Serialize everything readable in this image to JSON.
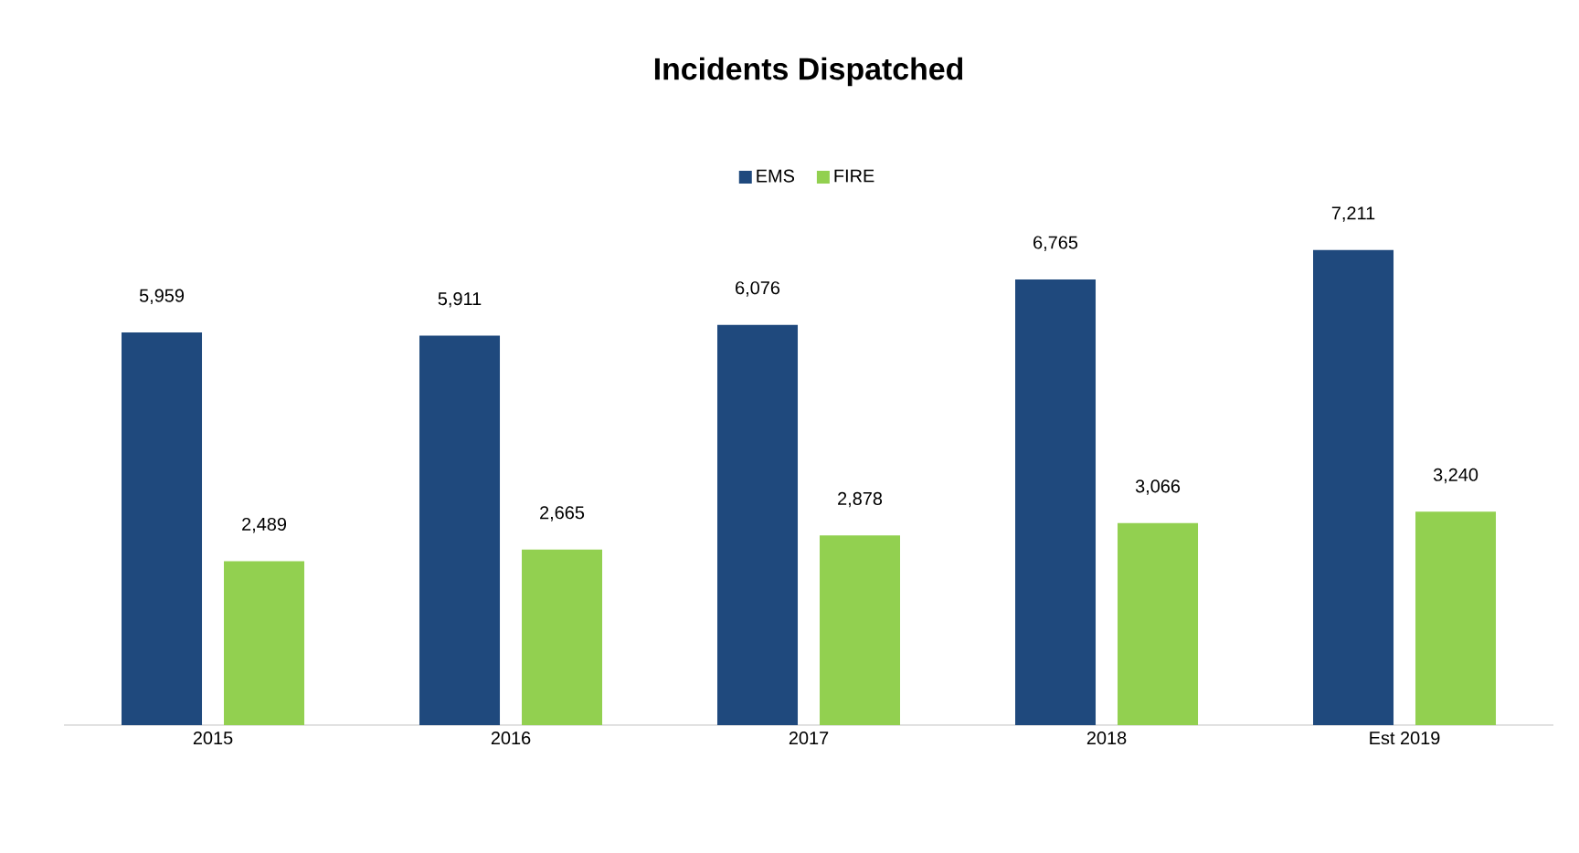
{
  "chart_data": {
    "type": "bar",
    "title": "Incidents Dispatched",
    "categories": [
      "2015",
      "2016",
      "2017",
      "2018",
      "Est 2019"
    ],
    "series": [
      {
        "name": "EMS",
        "color": "#1f497d",
        "values": [
          5959,
          5911,
          6076,
          6765,
          7211
        ],
        "value_labels": [
          "5,959",
          "5,911",
          "6,076",
          "6,765",
          "7,211"
        ]
      },
      {
        "name": "FIRE",
        "color": "#92d050",
        "values": [
          2489,
          2665,
          2878,
          3066,
          3240
        ],
        "value_labels": [
          "2,489",
          "2,665",
          "2,878",
          "3,066",
          "3,240"
        ]
      }
    ],
    "legend": "top"
  }
}
